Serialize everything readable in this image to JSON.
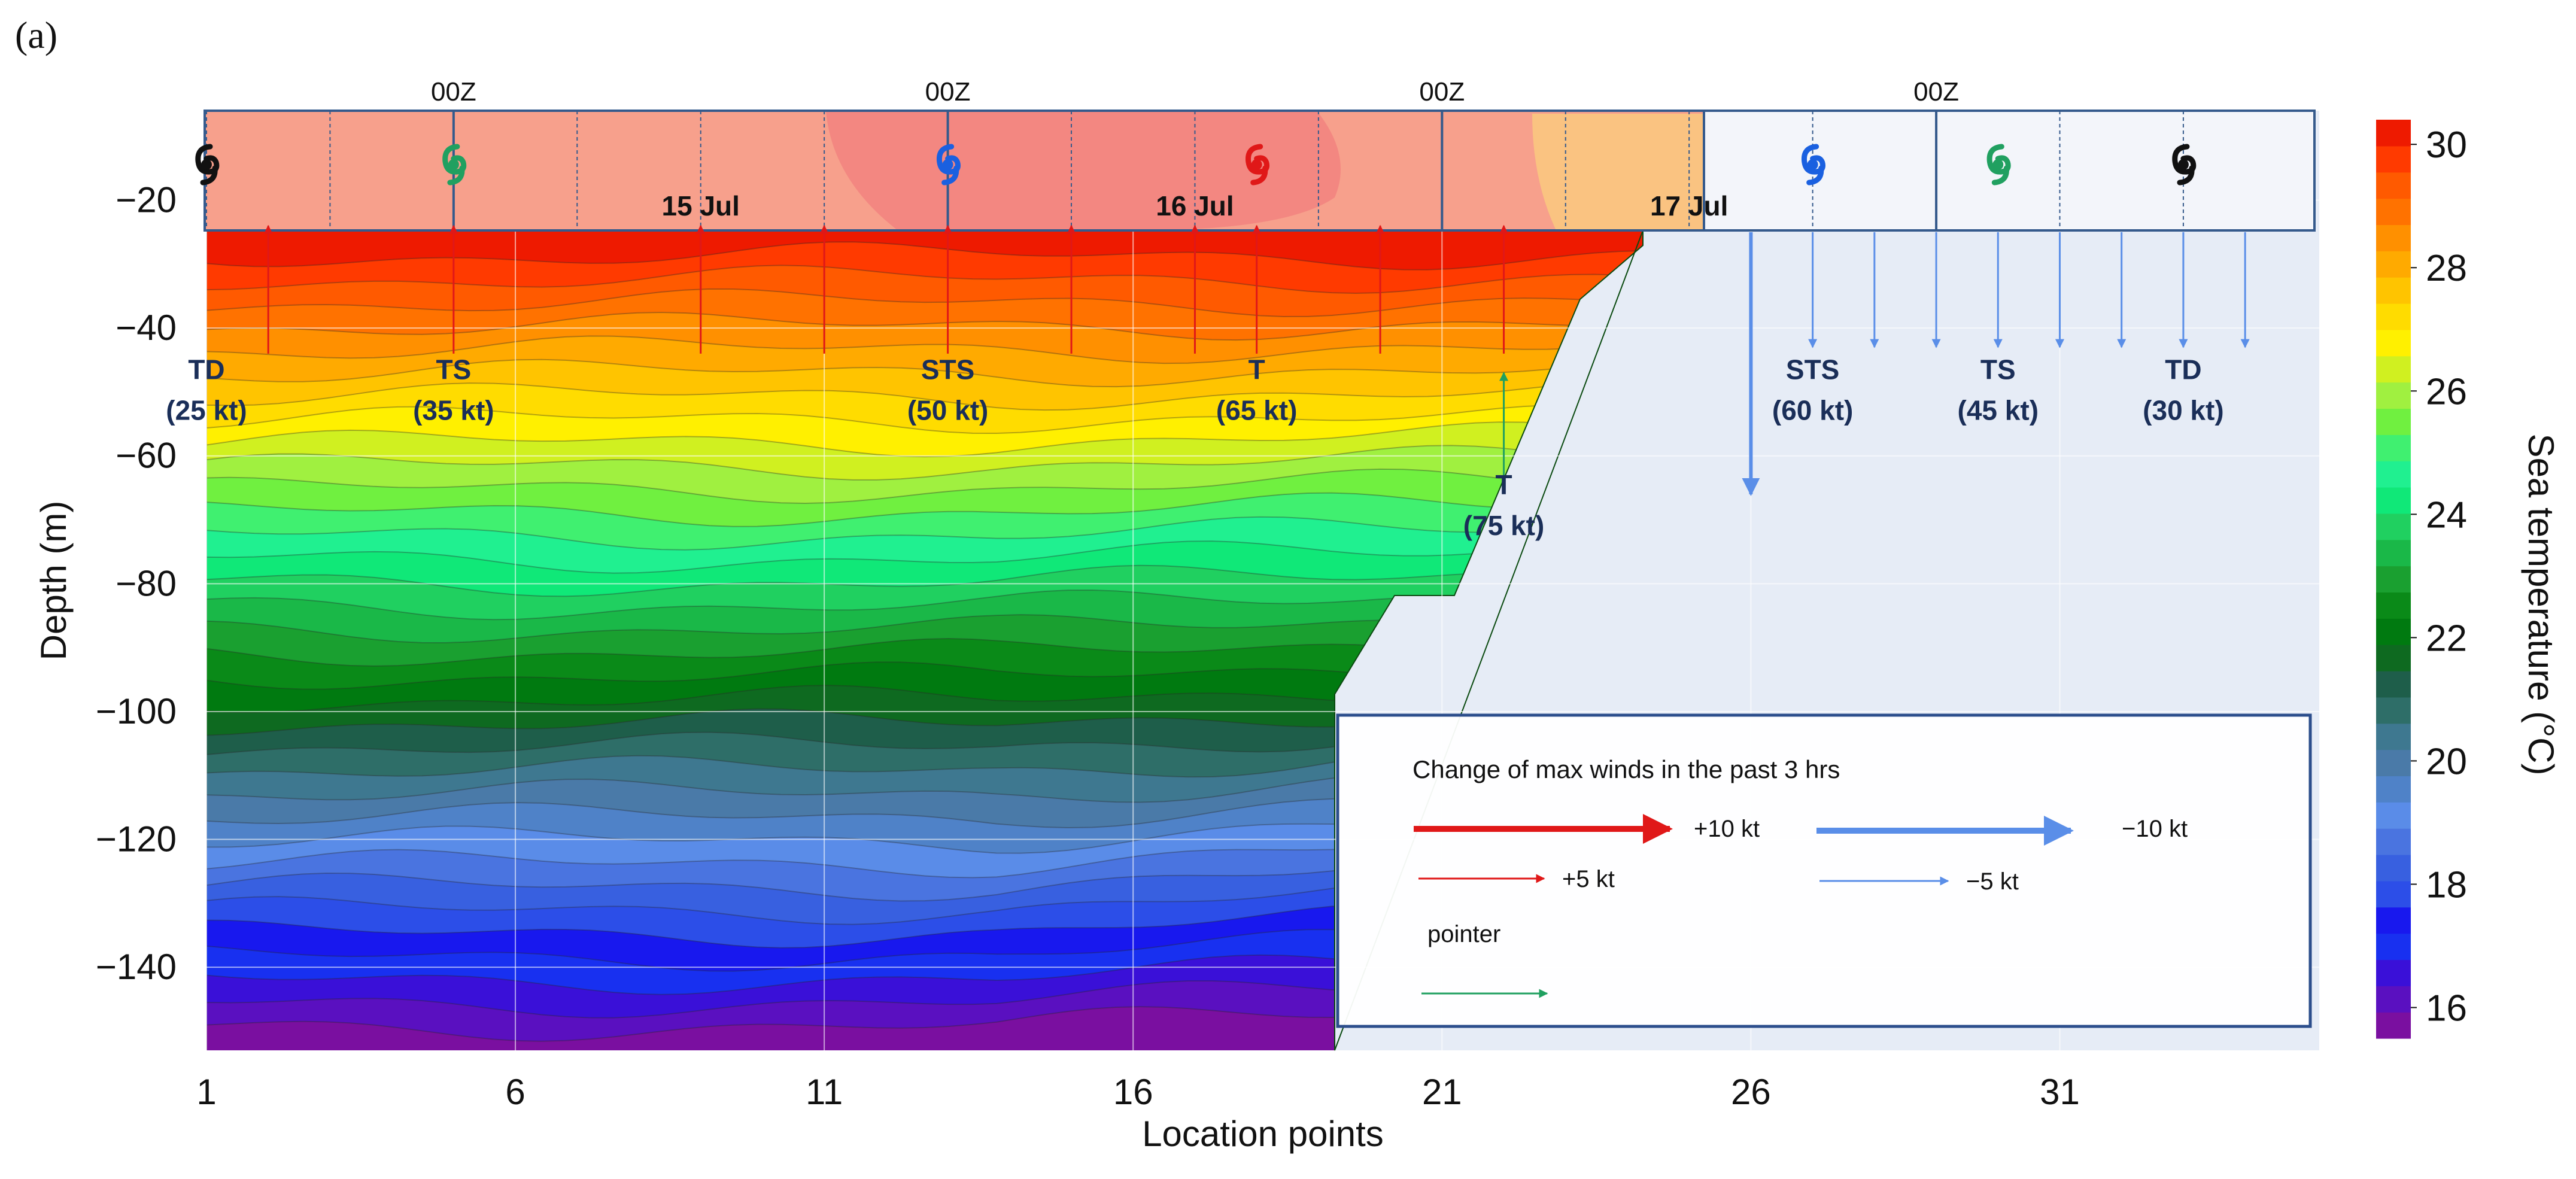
{
  "panel_label": "(a)",
  "chart_data": {
    "type": "contour",
    "title": "",
    "xlabel": "Location points",
    "ylabel": "Depth (m)",
    "xlim": [
      1,
      35.2
    ],
    "ylim": [
      -153,
      -6
    ],
    "x_ticks": [
      1,
      6,
      11,
      16,
      21,
      26,
      31
    ],
    "y_ticks": [
      -20,
      -40,
      -60,
      -80,
      -100,
      -120,
      -140
    ],
    "colorbar": {
      "label": "Sea temperature  (°C)",
      "min": 15.5,
      "max": 30.4,
      "ticks": [
        16,
        18,
        20,
        22,
        24,
        26,
        28,
        30
      ],
      "colors": [
        "#7a0fa0",
        "#5a10c0",
        "#3a10d8",
        "#1830f0",
        "#1818ee",
        "#2c4ee8",
        "#3860e0",
        "#4a74e0",
        "#5a8ce8",
        "#4f82c8",
        "#4a7aa8",
        "#3e7890",
        "#2e6e68",
        "#1e5e4a",
        "#0e6a20",
        "#007a10",
        "#0a8a18",
        "#1aa030",
        "#1ab848",
        "#20d060",
        "#10e878",
        "#20f090",
        "#40f070",
        "#70f040",
        "#a0f040",
        "#d0f020",
        "#fff000",
        "#ffdc00",
        "#ffc400",
        "#ffaa00",
        "#ff9000",
        "#ff7200",
        "#ff5a00",
        "#ff3a00",
        "#ee1a00"
      ]
    },
    "date_markers": [
      {
        "x": 9,
        "label": "15 Jul"
      },
      {
        "x": 17,
        "label": "16 Jul"
      },
      {
        "x": 25,
        "label": "17 Jul"
      }
    ],
    "time_markers": [
      {
        "x": 5,
        "label": "00Z"
      },
      {
        "x": 13,
        "label": "00Z"
      },
      {
        "x": 21,
        "label": "00Z"
      },
      {
        "x": 29,
        "label": "00Z"
      }
    ],
    "storm_symbols": [
      {
        "x": 1,
        "color": "#111111"
      },
      {
        "x": 5,
        "color": "#20a060"
      },
      {
        "x": 13,
        "color": "#1a60e0"
      },
      {
        "x": 18,
        "color": "#e01818"
      },
      {
        "x": 27,
        "color": "#1a60e0"
      },
      {
        "x": 30,
        "color": "#20a060"
      },
      {
        "x": 33,
        "color": "#111111"
      }
    ],
    "intensity_labels": [
      {
        "x": 1,
        "category": "TD",
        "wind": "(25 kt)"
      },
      {
        "x": 5,
        "category": "TS",
        "wind": "(35 kt)"
      },
      {
        "x": 13,
        "category": "STS",
        "wind": "(50 kt)"
      },
      {
        "x": 18,
        "category": "T",
        "wind": "(65 kt)"
      },
      {
        "x": 22,
        "category": "T",
        "wind": "(75 kt)"
      },
      {
        "x": 27,
        "category": "STS",
        "wind": "(60 kt)"
      },
      {
        "x": 30,
        "category": "TS",
        "wind": "(45 kt)"
      },
      {
        "x": 33,
        "category": "TD",
        "wind": "(30 kt)"
      }
    ],
    "wind_change_arrows": [
      {
        "x": 2,
        "change_kt": 5
      },
      {
        "x": 5,
        "change_kt": 5
      },
      {
        "x": 9,
        "change_kt": 5
      },
      {
        "x": 11,
        "change_kt": 5
      },
      {
        "x": 13,
        "change_kt": 5
      },
      {
        "x": 15,
        "change_kt": 5
      },
      {
        "x": 17,
        "change_kt": 5
      },
      {
        "x": 18,
        "change_kt": 5
      },
      {
        "x": 20,
        "change_kt": 5
      },
      {
        "x": 22,
        "change_kt": 5
      },
      {
        "x": 26,
        "change_kt": -10
      },
      {
        "x": 27,
        "change_kt": -5
      },
      {
        "x": 28,
        "change_kt": -5
      },
      {
        "x": 29,
        "change_kt": -5
      },
      {
        "x": 30,
        "change_kt": -5
      },
      {
        "x": 31,
        "change_kt": -5
      },
      {
        "x": 32,
        "change_kt": -5
      },
      {
        "x": 33,
        "change_kt": -5
      },
      {
        "x": 34,
        "change_kt": -5
      }
    ],
    "pointer": {
      "x": 22,
      "from_depth": -65,
      "to_depth": -47
    },
    "legend": {
      "title": "Change of max winds in the past 3 hrs",
      "items": [
        {
          "label": "+10 kt",
          "color": "#e01818",
          "style": "thick"
        },
        {
          "label": "−10 kt",
          "color": "#5a8ee8",
          "style": "thick"
        },
        {
          "label": "+5 kt",
          "color": "#e01818",
          "style": "thin"
        },
        {
          "label": "−5 kt",
          "color": "#5a8ee8",
          "style": "thin"
        },
        {
          "label": "pointer",
          "color": "#20a060",
          "style": "thin"
        }
      ],
      "placement": "lower-right"
    }
  }
}
